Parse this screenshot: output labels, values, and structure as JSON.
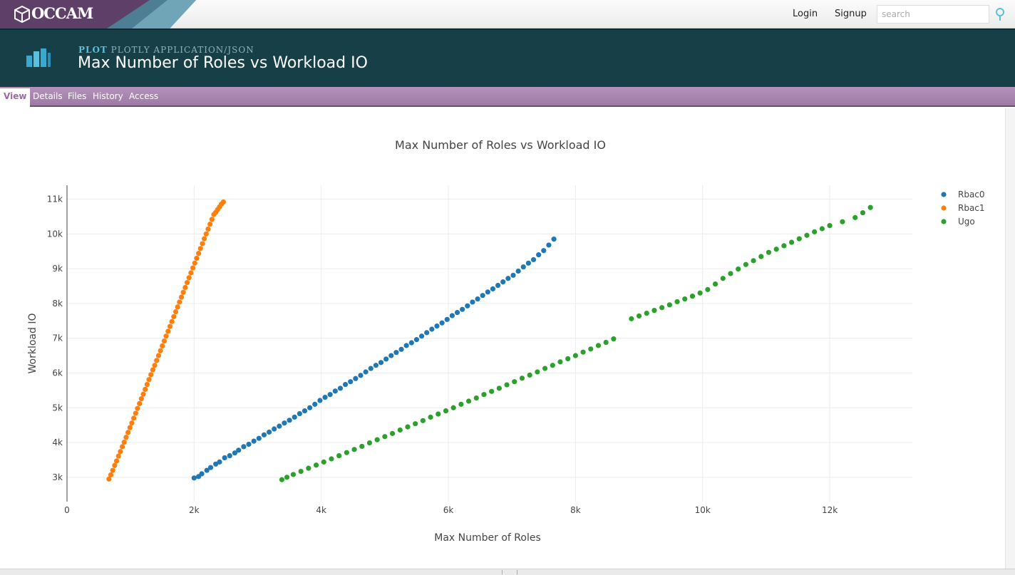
{
  "app": {
    "logo_text": "OCCAM"
  },
  "topnav": {
    "login": "Login",
    "signup": "Signup",
    "search_placeholder": "search"
  },
  "header": {
    "kind": "PLOT",
    "subtype": "PLOTLY APPLICATION/JSON",
    "title": "Max Number of Roles vs Workload IO"
  },
  "tabs": [
    "View",
    "Details",
    "Files",
    "History",
    "Access"
  ],
  "active_tab": "View",
  "colors": {
    "band": "#173f48",
    "tabs": "#a988b0",
    "accent": "#59c0de"
  },
  "chart_data": {
    "type": "scatter",
    "title": "Max Number of Roles vs Workload IO",
    "xlabel": "Max Number of Roles",
    "ylabel": "Workload IO",
    "xlim": [
      0,
      13300
    ],
    "ylim": [
      2300,
      11400
    ],
    "xticks": [
      0,
      2000,
      4000,
      6000,
      8000,
      10000,
      12000
    ],
    "xtick_labels": [
      "0",
      "2k",
      "4k",
      "6k",
      "8k",
      "10k",
      "12k"
    ],
    "yticks": [
      3000,
      4000,
      5000,
      6000,
      7000,
      8000,
      9000,
      10000,
      11000
    ],
    "ytick_labels": [
      "3k",
      "4k",
      "5k",
      "6k",
      "7k",
      "8k",
      "9k",
      "10k",
      "11k"
    ],
    "grid": true,
    "legend_position": "top-right",
    "series": [
      {
        "name": "Rbac0",
        "color": "#1f77b4",
        "x": [
          2000,
          2070,
          2120,
          2200,
          2260,
          2340,
          2400,
          2480,
          2560,
          2640,
          2700,
          2780,
          2860,
          2940,
          3020,
          3100,
          3180,
          3260,
          3340,
          3420,
          3500,
          3580,
          3660,
          3740,
          3820,
          3900,
          3980,
          4060,
          4140,
          4220,
          4300,
          4380,
          4460,
          4540,
          4620,
          4700,
          4780,
          4860,
          4940,
          5020,
          5100,
          5180,
          5260,
          5340,
          5420,
          5500,
          5580,
          5660,
          5740,
          5820,
          5900,
          5980,
          6060,
          6140,
          6220,
          6300,
          6380,
          6460,
          6540,
          6620,
          6700,
          6780,
          6860,
          6940,
          7020,
          7100,
          7180,
          7260,
          7340,
          7420,
          7500,
          7580,
          7660
        ],
        "y": [
          2980,
          3020,
          3100,
          3200,
          3280,
          3380,
          3440,
          3560,
          3620,
          3700,
          3780,
          3880,
          3950,
          4040,
          4120,
          4220,
          4300,
          4390,
          4470,
          4560,
          4640,
          4730,
          4830,
          4910,
          5000,
          5100,
          5210,
          5300,
          5380,
          5480,
          5560,
          5670,
          5750,
          5840,
          5930,
          6030,
          6130,
          6220,
          6300,
          6400,
          6500,
          6590,
          6680,
          6790,
          6870,
          6960,
          7060,
          7160,
          7260,
          7350,
          7440,
          7540,
          7650,
          7740,
          7830,
          7930,
          8040,
          8130,
          8230,
          8330,
          8420,
          8520,
          8620,
          8720,
          8810,
          8930,
          9050,
          9160,
          9260,
          9400,
          9520,
          9680,
          9850
        ]
      },
      {
        "name": "Rbac1",
        "color": "#ff7f0e",
        "x": [
          660,
          690,
          720,
          750,
          780,
          810,
          840,
          870,
          900,
          930,
          960,
          990,
          1020,
          1050,
          1080,
          1110,
          1140,
          1170,
          1200,
          1230,
          1260,
          1290,
          1320,
          1350,
          1380,
          1410,
          1440,
          1470,
          1500,
          1530,
          1560,
          1590,
          1620,
          1650,
          1680,
          1710,
          1740,
          1770,
          1800,
          1830,
          1860,
          1890,
          1920,
          1950,
          1980,
          2010,
          2040,
          2070,
          2100,
          2130,
          2160,
          2190,
          2220,
          2250,
          2280,
          2310,
          2340,
          2370,
          2400,
          2430,
          2460
        ],
        "y": [
          2950,
          3070,
          3200,
          3340,
          3470,
          3610,
          3740,
          3880,
          4010,
          4150,
          4290,
          4430,
          4560,
          4700,
          4840,
          4980,
          5120,
          5260,
          5390,
          5530,
          5670,
          5810,
          5950,
          6090,
          6220,
          6360,
          6500,
          6640,
          6780,
          6920,
          7060,
          7200,
          7340,
          7480,
          7620,
          7760,
          7900,
          8040,
          8180,
          8320,
          8460,
          8600,
          8740,
          8880,
          9020,
          9160,
          9300,
          9440,
          9580,
          9720,
          9860,
          10000,
          10140,
          10280,
          10420,
          10560,
          10620,
          10700,
          10780,
          10860,
          10920
        ]
      },
      {
        "name": "Ugo",
        "color": "#2ca02c",
        "x": [
          3380,
          3460,
          3560,
          3680,
          3800,
          3920,
          4040,
          4160,
          4280,
          4400,
          4520,
          4640,
          4760,
          4880,
          5000,
          5120,
          5240,
          5360,
          5480,
          5600,
          5720,
          5840,
          5960,
          6080,
          6200,
          6320,
          6440,
          6560,
          6680,
          6800,
          6920,
          7040,
          7160,
          7280,
          7400,
          7520,
          7640,
          7760,
          7880,
          8000,
          8120,
          8240,
          8360,
          8480,
          8600,
          8880,
          9000,
          9120,
          9240,
          9360,
          9480,
          9600,
          9720,
          9840,
          9960,
          10080,
          10200,
          10320,
          10440,
          10560,
          10680,
          10800,
          10920,
          11040,
          11160,
          11280,
          11400,
          11520,
          11640,
          11760,
          11880,
          12000,
          12200,
          12400,
          12520,
          12640
        ],
        "y": [
          2930,
          3000,
          3080,
          3170,
          3260,
          3350,
          3440,
          3530,
          3620,
          3710,
          3800,
          3890,
          3990,
          4080,
          4170,
          4260,
          4360,
          4450,
          4540,
          4630,
          4730,
          4820,
          4910,
          5000,
          5100,
          5190,
          5280,
          5380,
          5470,
          5560,
          5660,
          5750,
          5850,
          5940,
          6030,
          6130,
          6220,
          6320,
          6410,
          6500,
          6600,
          6690,
          6790,
          6880,
          6980,
          7560,
          7640,
          7720,
          7800,
          7880,
          7960,
          8050,
          8130,
          8210,
          8300,
          8400,
          8560,
          8720,
          8860,
          8990,
          9120,
          9230,
          9350,
          9470,
          9560,
          9660,
          9760,
          9860,
          9960,
          10060,
          10150,
          10240,
          10350,
          10470,
          10610,
          10760
        ]
      }
    ]
  }
}
